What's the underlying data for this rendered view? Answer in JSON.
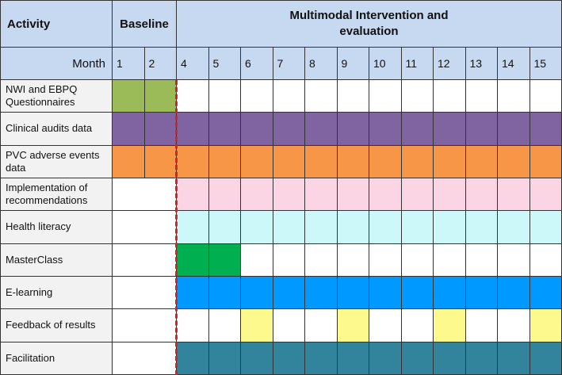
{
  "header": {
    "activity": "Activity",
    "baseline": "Baseline",
    "intervention": "Multimodal Intervention and evaluation",
    "month_label": "Month"
  },
  "months": [
    "1",
    "2",
    "4",
    "5",
    "6",
    "7",
    "8",
    "9",
    "10",
    "11",
    "12",
    "13",
    "14",
    "15"
  ],
  "rows": [
    {
      "label": "NWI and EBPQ Questionnaires",
      "baseline_merged": false,
      "cells": [
        "#9bbb59",
        "#9bbb59",
        null,
        null,
        null,
        null,
        null,
        null,
        null,
        null,
        null,
        null,
        null,
        null
      ]
    },
    {
      "label": "Clinical audits data",
      "baseline_merged": false,
      "cells": [
        "#8064a2",
        "#8064a2",
        "#8064a2",
        "#8064a2",
        "#8064a2",
        "#8064a2",
        "#8064a2",
        "#8064a2",
        "#8064a2",
        "#8064a2",
        "#8064a2",
        "#8064a2",
        "#8064a2",
        "#8064a2"
      ]
    },
    {
      "label": "PVC adverse events data",
      "baseline_merged": false,
      "cells": [
        "#f79646",
        "#f79646",
        "#f79646",
        "#f79646",
        "#f79646",
        "#f79646",
        "#f79646",
        "#f79646",
        "#f79646",
        "#f79646",
        "#f79646",
        "#f79646",
        "#f79646",
        "#f79646"
      ]
    },
    {
      "label": "Implementation of recommendations",
      "baseline_merged": true,
      "cells": [
        null,
        null,
        "#fcd5e4",
        "#fcd5e4",
        "#fcd5e4",
        "#fcd5e4",
        "#fcd5e4",
        "#fcd5e4",
        "#fcd5e4",
        "#fcd5e4",
        "#fcd5e4",
        "#fcd5e4",
        "#fcd5e4",
        "#fcd5e4"
      ]
    },
    {
      "label": "Health literacy",
      "baseline_merged": true,
      "cells": [
        null,
        null,
        "#ccf8f9",
        "#ccf8f9",
        "#ccf8f9",
        "#ccf8f9",
        "#ccf8f9",
        "#ccf8f9",
        "#ccf8f9",
        "#ccf8f9",
        "#ccf8f9",
        "#ccf8f9",
        "#ccf8f9",
        "#ccf8f9"
      ]
    },
    {
      "label": "MasterClass",
      "baseline_merged": true,
      "cells": [
        null,
        null,
        "#00b050",
        "#00b050",
        null,
        null,
        null,
        null,
        null,
        null,
        null,
        null,
        null,
        null
      ]
    },
    {
      "label": "E-learning",
      "baseline_merged": true,
      "cells": [
        null,
        null,
        "#0099ff",
        "#0099ff",
        "#0099ff",
        "#0099ff",
        "#0099ff",
        "#0099ff",
        "#0099ff",
        "#0099ff",
        "#0099ff",
        "#0099ff",
        "#0099ff",
        "#0099ff"
      ]
    },
    {
      "label": "Feedback of results",
      "baseline_merged": true,
      "cells": [
        null,
        null,
        null,
        null,
        "#fdf98c",
        null,
        null,
        "#fdf98c",
        null,
        null,
        "#fdf98c",
        null,
        null,
        "#fdf98c"
      ]
    },
    {
      "label": "Facilitation",
      "baseline_merged": true,
      "cells": [
        null,
        null,
        "#31849b",
        "#31849b",
        "#31849b",
        "#31849b",
        "#31849b",
        "#31849b",
        "#31849b",
        "#31849b",
        "#31849b",
        "#31849b",
        "#31849b",
        "#31849b"
      ]
    }
  ]
}
